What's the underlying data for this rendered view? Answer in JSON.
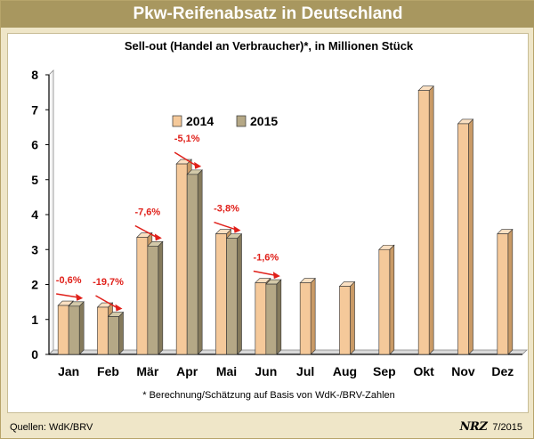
{
  "header": {
    "title": "Pkw-Reifenabsatz in Deutschland"
  },
  "footer": {
    "note": "* Berechnung/Schätzung auf Basis von WdK-/BRV-Zahlen",
    "source": "Quellen: WdK/BRV",
    "logo_text": "NRZ",
    "issue": "7/2015"
  },
  "colors": {
    "series_2014": "#f5c99a",
    "series_2015": "#b5a886",
    "annotation": "#e0201a",
    "header_bg": "#a8975f"
  },
  "chart_data": {
    "type": "bar",
    "title": "Sell-out (Handel an Verbraucher)*, in Millionen Stück",
    "categories": [
      "Jan",
      "Feb",
      "Mär",
      "Apr",
      "Mai",
      "Jun",
      "Jul",
      "Aug",
      "Sep",
      "Okt",
      "Nov",
      "Dez"
    ],
    "series": [
      {
        "name": "2014",
        "values": [
          1.4,
          1.35,
          3.35,
          5.45,
          3.45,
          2.05,
          2.05,
          1.95,
          3.0,
          7.55,
          6.6,
          3.45
        ]
      },
      {
        "name": "2015",
        "values": [
          1.38,
          1.08,
          3.1,
          5.15,
          3.32,
          2.01,
          null,
          null,
          null,
          null,
          null,
          null
        ]
      }
    ],
    "annotations": [
      {
        "category": "Jan",
        "text": "-0,6%"
      },
      {
        "category": "Feb",
        "text": "-19,7%"
      },
      {
        "category": "Mär",
        "text": "-7,6%"
      },
      {
        "category": "Apr",
        "text": "-5,1%"
      },
      {
        "category": "Mai",
        "text": "-3,8%"
      },
      {
        "category": "Jun",
        "text": "-1,6%"
      }
    ],
    "yticks": [
      "0",
      "1",
      "2",
      "3",
      "4",
      "5",
      "6",
      "7",
      "8"
    ],
    "ylim": [
      0,
      8
    ],
    "legend": "top-left",
    "grid": false
  }
}
